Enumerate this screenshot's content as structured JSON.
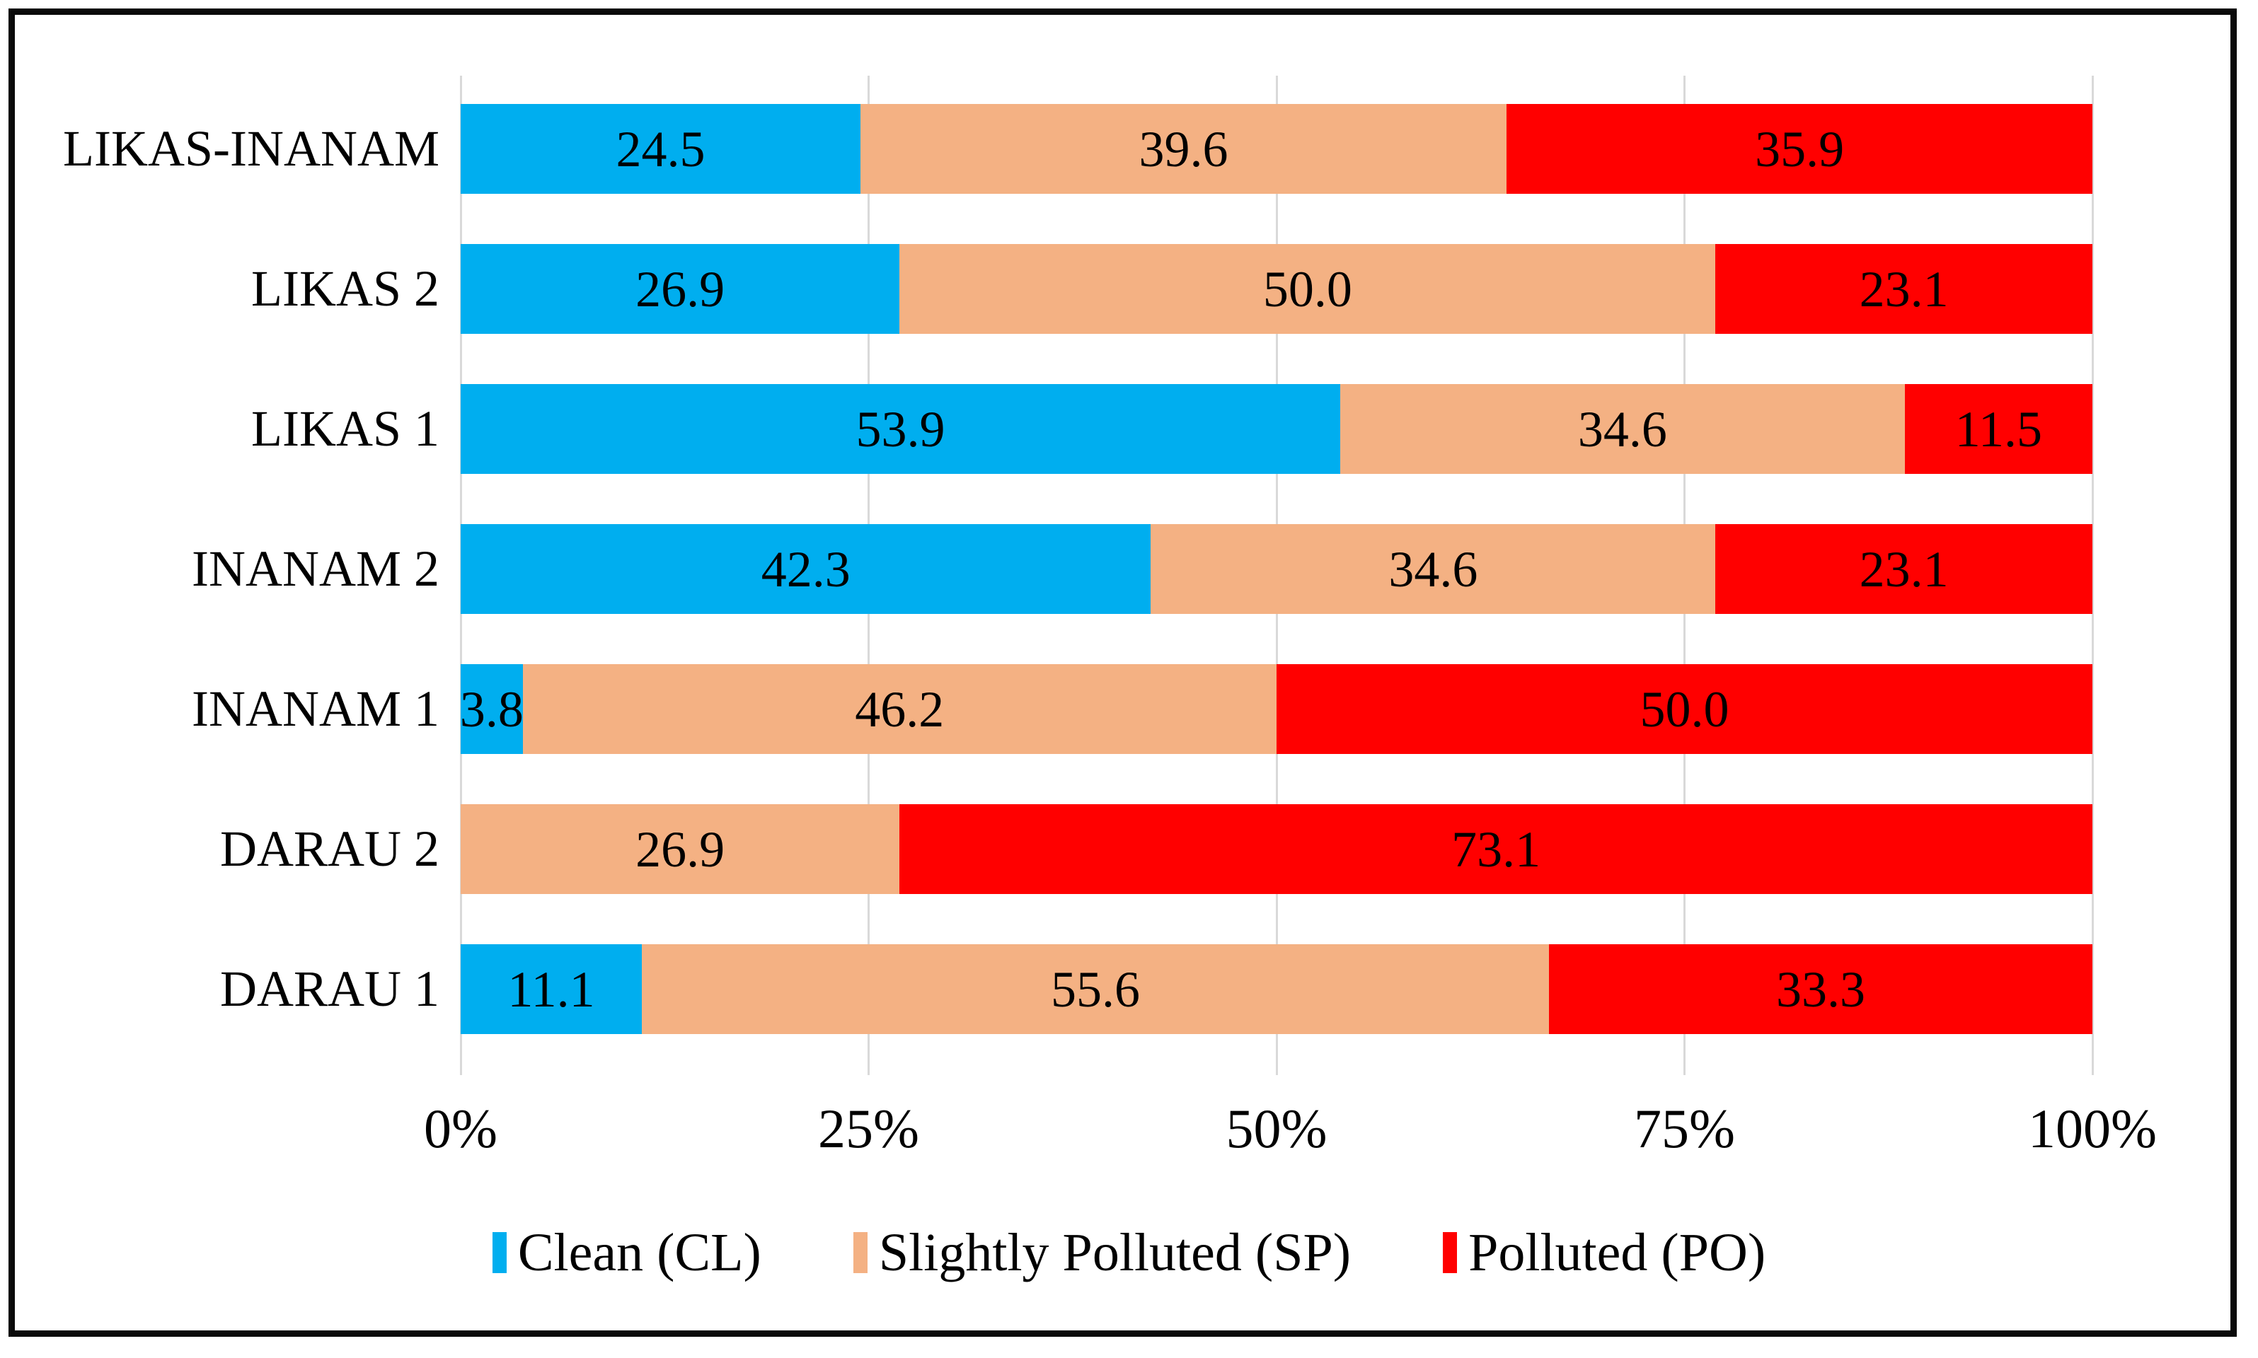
{
  "chart_data": {
    "type": "bar",
    "orientation": "horizontal",
    "stacked": true,
    "categories": [
      "LIKAS-INANAM",
      "LIKAS 2",
      "LIKAS 1",
      "INANAM 2",
      "INANAM 1",
      "DARAU 2",
      "DARAU 1"
    ],
    "series": [
      {
        "name": "Clean (CL)",
        "color": "#00AEEF",
        "values": [
          24.5,
          26.9,
          53.9,
          42.3,
          3.8,
          0,
          11.1
        ]
      },
      {
        "name": "Slightly Polluted (SP)",
        "color": "#F4B183",
        "values": [
          39.6,
          50.0,
          34.6,
          34.6,
          46.2,
          26.9,
          55.6
        ]
      },
      {
        "name": "Polluted (PO)",
        "color": "#FF0000",
        "values": [
          35.9,
          23.1,
          11.5,
          23.1,
          50.0,
          73.1,
          33.3
        ]
      }
    ],
    "x_tick_labels": [
      "0%",
      "25%",
      "50%",
      "75%",
      "100%"
    ],
    "x_tick_values": [
      0,
      25,
      50,
      75,
      100
    ],
    "xlim": [
      0,
      100
    ],
    "value_decimals": 1,
    "grid": "vertical",
    "gridline_color": "#D9D9D9",
    "frame_color": "#0A0A0A",
    "label_color": "#000000",
    "legend_position": "bottom"
  }
}
